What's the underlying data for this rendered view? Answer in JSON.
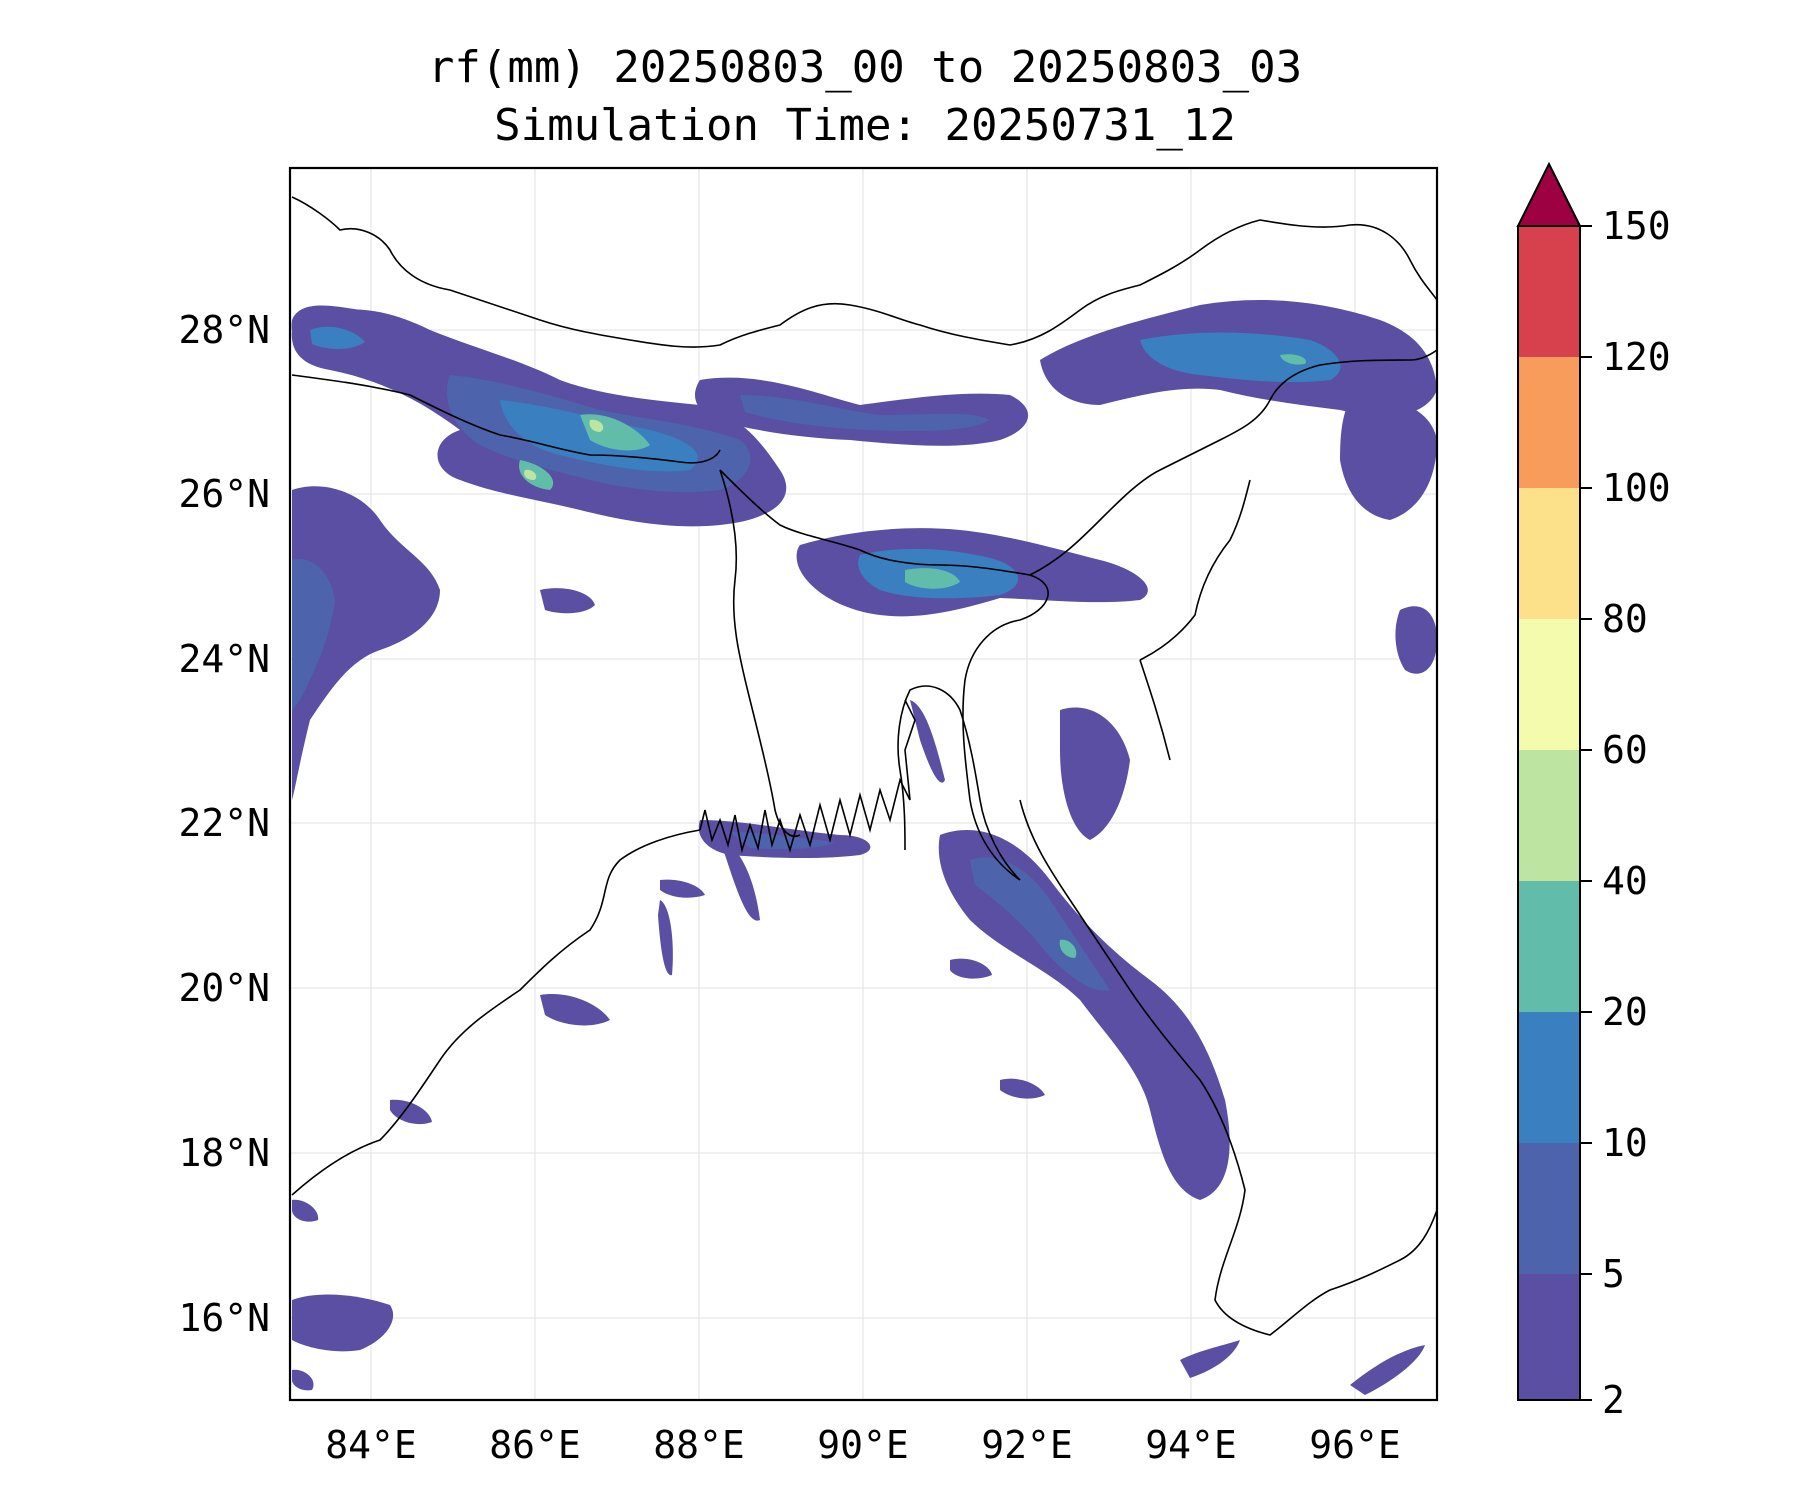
{
  "title": "rf(mm) 20250803_00 to 20250803_03",
  "subtitle": "Simulation Time: 20250731_12",
  "map": {
    "lon_range": [
      83,
      97
    ],
    "lat_range": [
      15,
      30
    ],
    "lon_ticks": [
      "84°E",
      "86°E",
      "88°E",
      "90°E",
      "92°E",
      "94°E",
      "96°E"
    ],
    "lat_ticks": [
      "28°N",
      "26°N",
      "24°N",
      "22°N",
      "20°N",
      "18°N",
      "16°N"
    ],
    "grid": true
  },
  "colorbar": {
    "labels": [
      "2",
      "5",
      "10",
      "20",
      "40",
      "60",
      "80",
      "100",
      "120",
      "150"
    ],
    "colors": [
      "#5a4fa2",
      "#4d64ad",
      "#3a7fbf",
      "#62bcaa",
      "#bde4a0",
      "#f4fbad",
      "#fce08a",
      "#f89c5b",
      "#d7414e",
      "#9e0142"
    ],
    "extend": "max"
  }
}
